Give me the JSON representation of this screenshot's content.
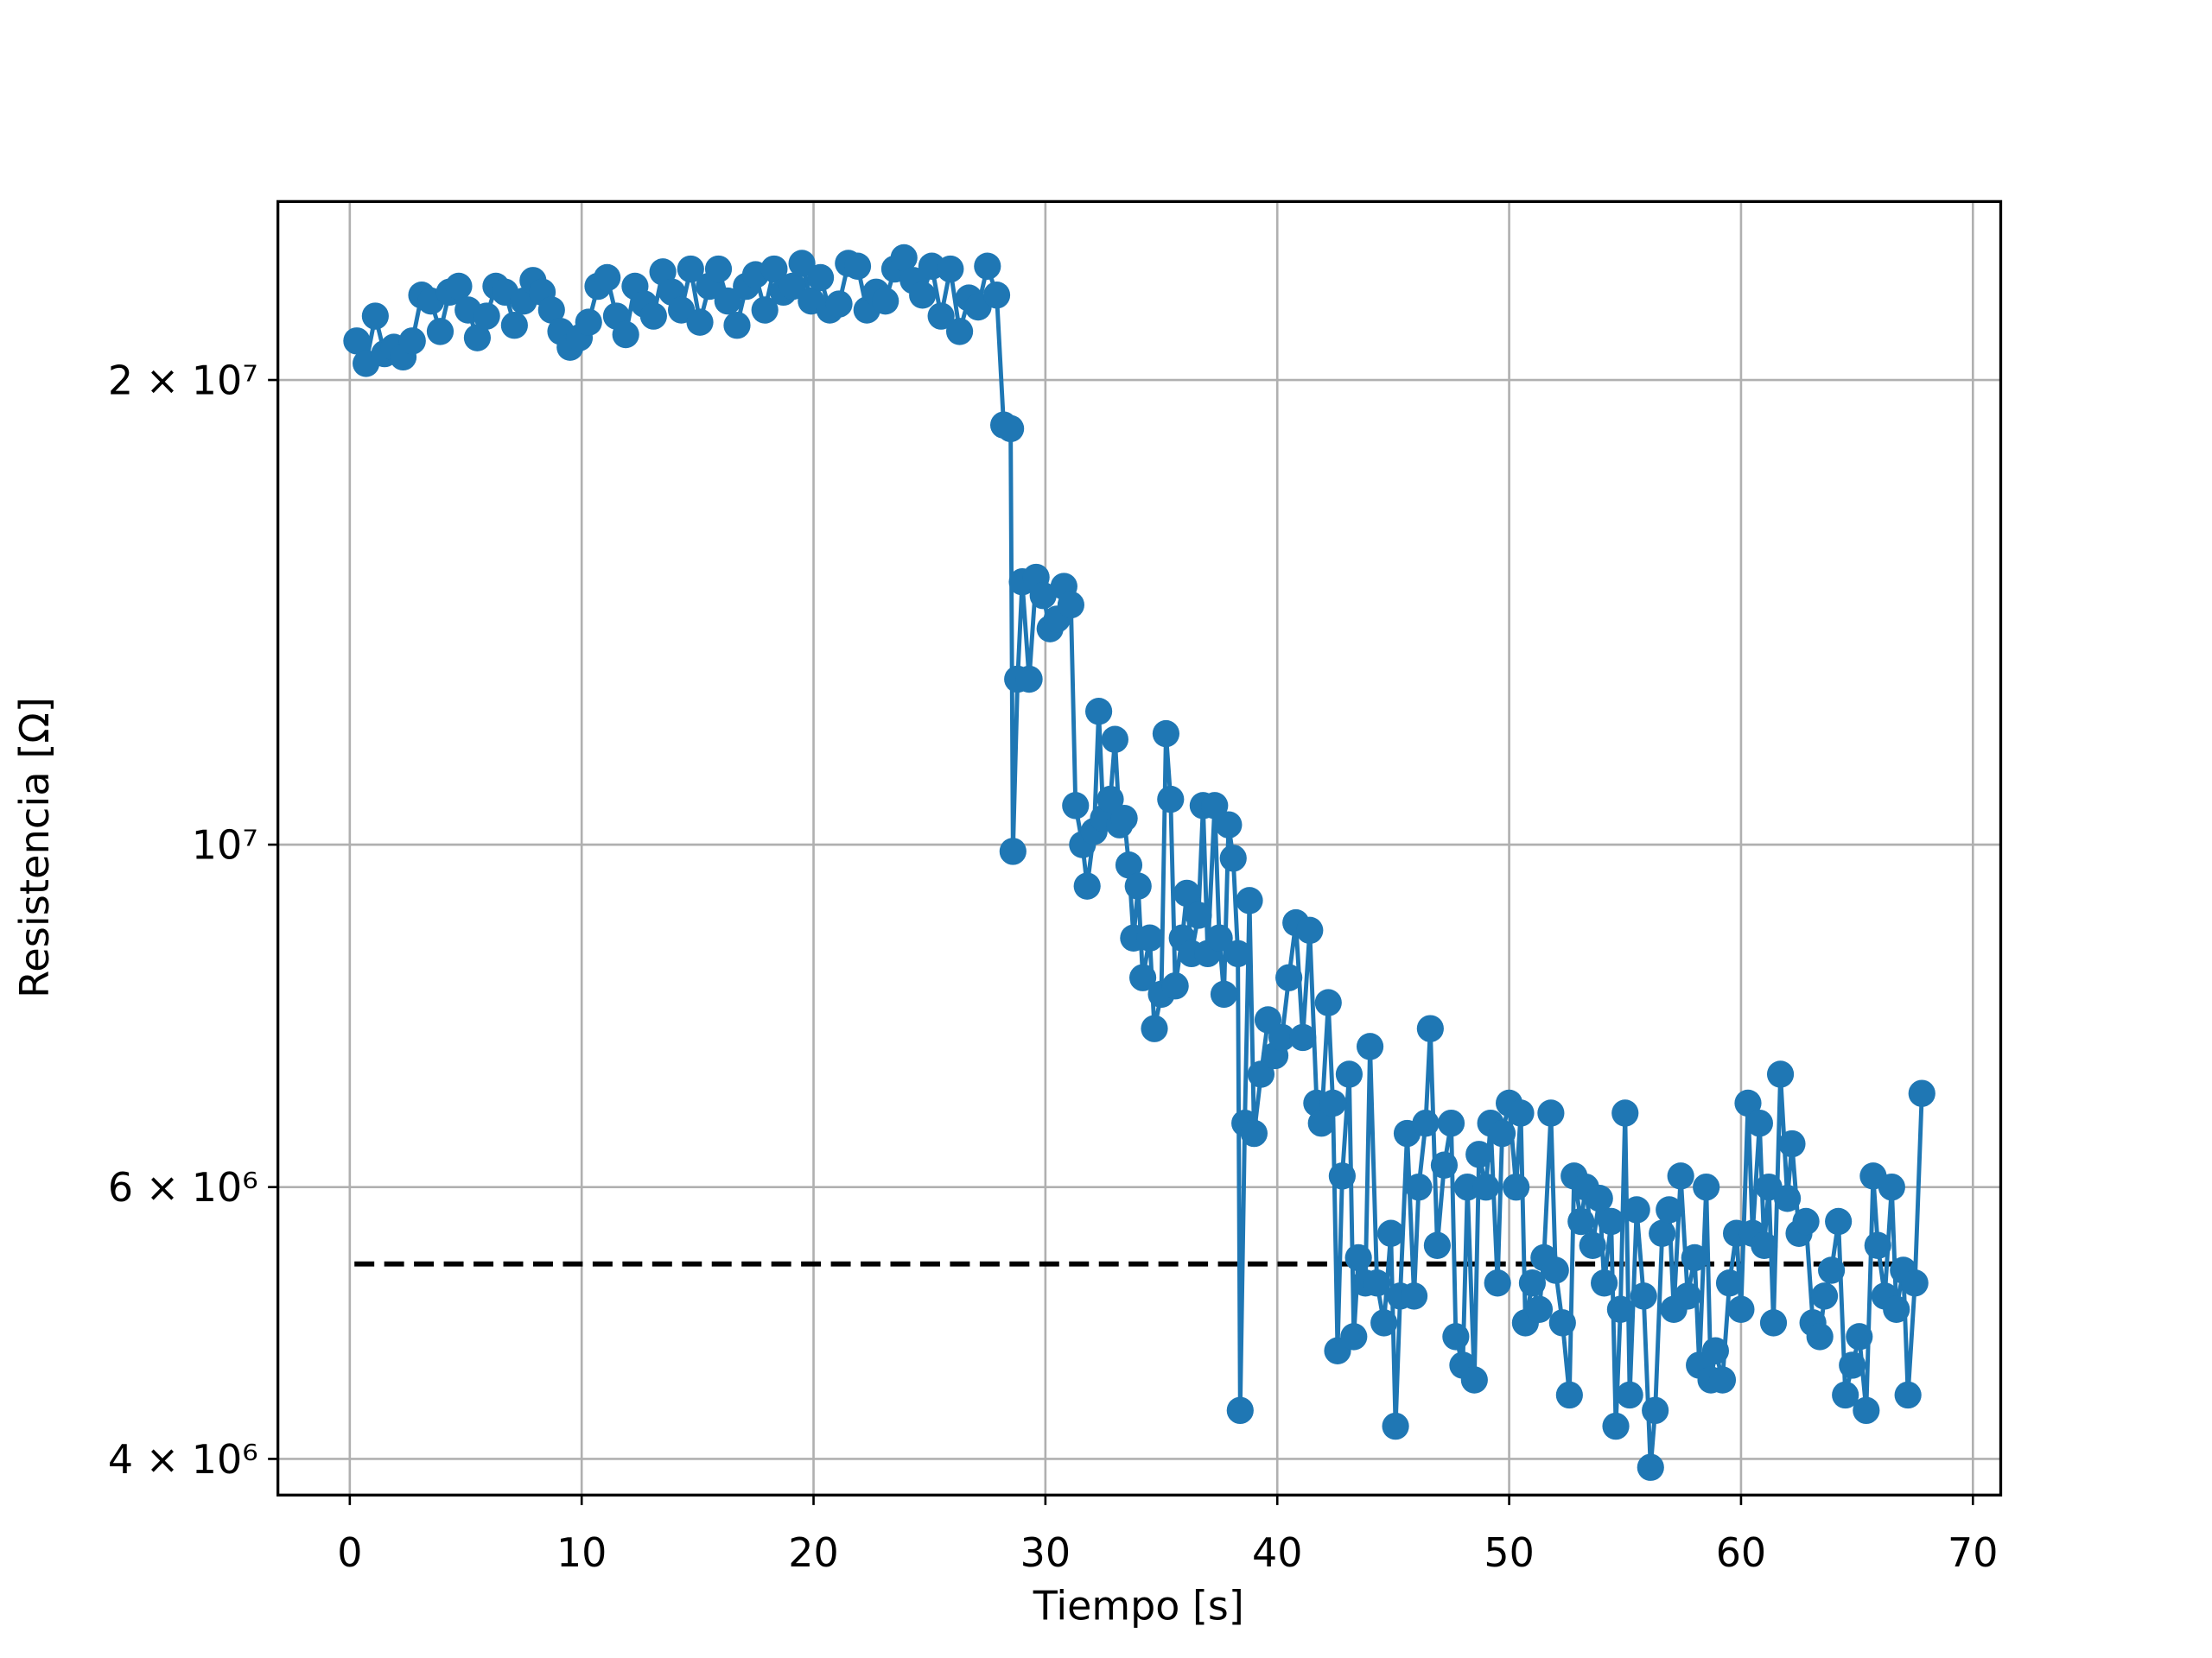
{
  "chart_data": {
    "type": "line",
    "xlabel": "Tiempo [s]",
    "ylabel": "Resistencia [Ω]",
    "xlim": [
      -3.1,
      71.2
    ],
    "xticks": [
      0,
      10,
      20,
      30,
      40,
      50,
      60,
      70
    ],
    "ylim": [
      3790000,
      26100000
    ],
    "log_y": true,
    "grid": true,
    "yticks": [
      {
        "value": 4000000,
        "label": "4 × 10⁶"
      },
      {
        "value": 6000000,
        "label": "6 × 10⁶"
      },
      {
        "value": 10000000,
        "label": "10⁷"
      },
      {
        "value": 20000000,
        "label": "2 × 10⁷"
      }
    ],
    "hlines": [
      {
        "y": 5350000,
        "xmin": 0.2,
        "xmax": 67.6,
        "color": "#000000",
        "style": "dashed"
      }
    ],
    "series": [
      {
        "color": "#1f77b4",
        "marker": "circle",
        "x": [
          0.3,
          0.7,
          1.1,
          1.5,
          1.9,
          2.3,
          2.7,
          3.1,
          3.5,
          3.9,
          4.3,
          4.7,
          5.1,
          5.5,
          5.9,
          6.3,
          6.7,
          7.1,
          7.5,
          7.9,
          8.3,
          8.7,
          9.1,
          9.5,
          9.9,
          10.3,
          10.7,
          11.1,
          11.5,
          11.9,
          12.3,
          12.7,
          13.1,
          13.5,
          13.9,
          14.3,
          14.7,
          15.1,
          15.5,
          15.9,
          16.3,
          16.7,
          17.1,
          17.5,
          17.9,
          18.3,
          18.7,
          19.1,
          19.5,
          19.9,
          20.3,
          20.7,
          21.1,
          21.5,
          21.9,
          22.3,
          22.7,
          23.1,
          23.5,
          23.9,
          24.3,
          24.7,
          25.1,
          25.5,
          25.9,
          26.3,
          26.7,
          27.1,
          27.5,
          27.9,
          28.2,
          28.5,
          28.6,
          28.8,
          29.0,
          29.3,
          29.6,
          29.9,
          30.2,
          30.5,
          30.8,
          31.1,
          31.3,
          31.6,
          31.8,
          32.1,
          32.3,
          32.5,
          32.8,
          33.0,
          33.2,
          33.4,
          33.6,
          33.8,
          34.0,
          34.2,
          34.5,
          34.7,
          35.0,
          35.2,
          35.4,
          35.6,
          35.9,
          36.1,
          36.3,
          36.6,
          36.8,
          37.0,
          37.3,
          37.5,
          37.7,
          37.9,
          38.1,
          38.3,
          38.4,
          38.6,
          38.8,
          39.0,
          39.3,
          39.6,
          39.9,
          40.2,
          40.5,
          40.8,
          41.1,
          41.4,
          41.7,
          41.9,
          42.2,
          42.4,
          42.6,
          42.8,
          43.1,
          43.3,
          43.5,
          43.8,
          44.0,
          44.3,
          44.6,
          44.9,
          45.1,
          45.3,
          45.6,
          45.9,
          46.1,
          46.4,
          46.6,
          46.9,
          47.2,
          47.5,
          47.7,
          48.0,
          48.2,
          48.5,
          48.7,
          49.0,
          49.2,
          49.5,
          49.7,
          50.0,
          50.3,
          50.5,
          50.7,
          51.0,
          51.3,
          51.5,
          51.8,
          52.0,
          52.3,
          52.6,
          52.8,
          53.1,
          53.3,
          53.6,
          53.9,
          54.1,
          54.4,
          54.6,
          54.8,
          55.0,
          55.2,
          55.5,
          55.8,
          56.1,
          56.3,
          56.6,
          56.9,
          57.1,
          57.4,
          57.7,
          58.0,
          58.2,
          58.5,
          58.7,
          58.9,
          59.2,
          59.5,
          59.8,
          60.0,
          60.3,
          60.5,
          60.8,
          61.0,
          61.2,
          61.4,
          61.7,
          62.0,
          62.2,
          62.5,
          62.8,
          63.1,
          63.4,
          63.6,
          63.9,
          64.2,
          64.5,
          64.8,
          65.1,
          65.4,
          65.7,
          65.9,
          66.2,
          66.5,
          66.7,
          67.0,
          67.2,
          67.5,
          67.8
        ],
        "values": [
          21200000.0,
          20500000.0,
          22000000.0,
          20800000.0,
          21000000.0,
          20700000.0,
          21200000.0,
          22700000.0,
          22500000.0,
          21500000.0,
          22800000.0,
          23000000.0,
          22200000.0,
          21300000.0,
          22000000.0,
          23000000.0,
          22800000.0,
          21700000.0,
          22500000.0,
          23200000.0,
          22800000.0,
          22200000.0,
          21500000.0,
          21000000.0,
          21300000.0,
          21800000.0,
          23000000.0,
          23300000.0,
          22000000.0,
          21400000.0,
          23000000.0,
          22400000.0,
          22000000.0,
          23500000.0,
          22800000.0,
          22200000.0,
          23600000.0,
          21800000.0,
          23000000.0,
          23600000.0,
          22500000.0,
          21700000.0,
          23000000.0,
          23400000.0,
          22200000.0,
          23600000.0,
          22800000.0,
          23000000.0,
          23800000.0,
          22500000.0,
          23300000.0,
          22200000.0,
          22400000.0,
          23800000.0,
          23700000.0,
          22200000.0,
          22800000.0,
          22500000.0,
          23600000.0,
          24000000.0,
          23200000.0,
          22700000.0,
          23700000.0,
          22000000.0,
          23600000.0,
          21500000.0,
          22600000.0,
          22300000.0,
          23700000.0,
          22700000.0,
          18700000.0,
          18600000.0,
          9900000.0,
          12800000.0,
          14800000.0,
          12800000.0,
          14900000.0,
          14500000.0,
          13800000.0,
          14000000.0,
          14700000.0,
          14300000.0,
          10600000.0,
          10000000.0,
          9400000.0,
          10200000.0,
          12200000.0,
          10400000.0,
          10700000.0,
          11700000.0,
          10300000.0,
          10400000.0,
          9700000.0,
          8700000.0,
          9400000.0,
          8200000.0,
          8700000.0,
          7600000.0,
          8000000.0,
          11800000.0,
          10700000.0,
          8100000.0,
          8700000.0,
          9300000.0,
          8500000.0,
          9000000.0,
          10600000.0,
          8500000.0,
          10600000.0,
          8700000.0,
          8000000.0,
          10300000.0,
          9800000.0,
          8500000.0,
          4300000.0,
          6600000.0,
          9200000.0,
          6500000.0,
          7100000.0,
          7700000.0,
          7300000.0,
          7500000.0,
          8200000.0,
          8900000.0,
          7500000.0,
          8800000.0,
          6800000.0,
          6600000.0,
          7900000.0,
          6800000.0,
          4700000.0,
          6100000.0,
          7100000.0,
          4800000.0,
          5400000.0,
          5200000.0,
          7400000.0,
          5200000.0,
          4900000.0,
          5600000.0,
          4200000.0,
          5100000.0,
          6500000.0,
          5100000.0,
          6000000.0,
          6600000.0,
          7600000.0,
          5500000.0,
          6200000.0,
          6600000.0,
          4800000.0,
          4600000.0,
          6000000.0,
          4500000.0,
          6300000.0,
          6000000.0,
          6600000.0,
          5200000.0,
          6500000.0,
          6800000.0,
          6000000.0,
          6700000.0,
          4900000.0,
          5200000.0,
          5000000.0,
          5400000.0,
          6700000.0,
          5300000.0,
          4900000.0,
          4400000.0,
          6100000.0,
          5700000.0,
          6000000.0,
          5500000.0,
          5900000.0,
          5200000.0,
          5700000.0,
          4200000.0,
          5000000.0,
          6700000.0,
          4400000.0,
          5800000.0,
          5100000.0,
          3950000.0,
          4300000.0,
          5600000.0,
          5800000.0,
          5000000.0,
          6100000.0,
          5100000.0,
          5400000.0,
          4600000.0,
          6000000.0,
          4500000.0,
          4700000.0,
          4500000.0,
          5200000.0,
          5600000.0,
          5000000.0,
          6800000.0,
          5600000.0,
          6600000.0,
          5500000.0,
          6000000.0,
          4900000.0,
          7100000.0,
          5900000.0,
          6400000.0,
          5600000.0,
          5700000.0,
          4900000.0,
          4800000.0,
          5100000.0,
          5300000.0,
          5700000.0,
          4400000.0,
          4600000.0,
          4800000.0,
          4300000.0,
          6100000.0,
          5500000.0,
          5100000.0,
          6000000.0,
          5000000.0,
          5300000.0,
          4400000.0,
          5200000.0,
          6900000.0
        ]
      }
    ]
  }
}
